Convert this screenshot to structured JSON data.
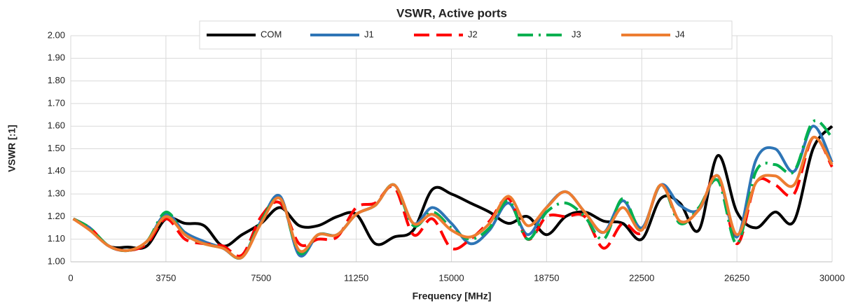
{
  "chart_data": {
    "type": "line",
    "title": "VSWR, Active ports",
    "xlabel": "Frequency [MHz]",
    "ylabel": "VSWR [:1]",
    "x": [
      100,
      750,
      1500,
      2250,
      3000,
      3750,
      4500,
      5250,
      6000,
      6750,
      7500,
      8250,
      9000,
      9750,
      10500,
      11250,
      12000,
      12750,
      13500,
      14250,
      15000,
      15750,
      16500,
      17250,
      18000,
      18750,
      19500,
      20250,
      21000,
      21750,
      22500,
      23250,
      24000,
      24750,
      25500,
      26250,
      27000,
      27750,
      28500,
      29250,
      30000
    ],
    "series": [
      {
        "name": "COM",
        "color": "#000000",
        "dash": "solid",
        "values": [
          1.19,
          1.15,
          1.07,
          1.065,
          1.07,
          1.19,
          1.17,
          1.16,
          1.07,
          1.12,
          1.17,
          1.24,
          1.16,
          1.16,
          1.2,
          1.21,
          1.08,
          1.11,
          1.14,
          1.32,
          1.3,
          1.26,
          1.22,
          1.17,
          1.2,
          1.12,
          1.2,
          1.22,
          1.18,
          1.17,
          1.1,
          1.28,
          1.26,
          1.14,
          1.47,
          1.22,
          1.15,
          1.22,
          1.18,
          1.5,
          1.6
        ]
      },
      {
        "name": "J1",
        "color": "#2e75b6",
        "dash": "solid",
        "values": [
          1.19,
          1.15,
          1.07,
          1.05,
          1.09,
          1.21,
          1.13,
          1.09,
          1.06,
          1.02,
          1.18,
          1.29,
          1.03,
          1.12,
          1.12,
          1.21,
          1.25,
          1.34,
          1.17,
          1.24,
          1.17,
          1.08,
          1.14,
          1.26,
          1.12,
          1.24,
          1.31,
          1.22,
          1.13,
          1.27,
          1.15,
          1.34,
          1.25,
          1.23,
          1.38,
          1.11,
          1.45,
          1.5,
          1.4,
          1.6,
          1.44
        ]
      },
      {
        "name": "J2",
        "color": "#ff0000",
        "dash": "dashed",
        "values": [
          1.19,
          1.15,
          1.07,
          1.05,
          1.08,
          1.19,
          1.1,
          1.08,
          1.07,
          1.03,
          1.2,
          1.26,
          1.08,
          1.1,
          1.11,
          1.24,
          1.26,
          1.33,
          1.12,
          1.19,
          1.06,
          1.1,
          1.18,
          1.28,
          1.1,
          1.2,
          1.2,
          1.2,
          1.06,
          1.17,
          1.13,
          1.34,
          1.18,
          1.23,
          1.38,
          1.08,
          1.35,
          1.34,
          1.3,
          1.55,
          1.42
        ]
      },
      {
        "name": "J3",
        "color": "#00b050",
        "dash": "dashdot",
        "values": [
          1.19,
          1.15,
          1.07,
          1.05,
          1.09,
          1.22,
          1.12,
          1.08,
          1.06,
          1.02,
          1.18,
          1.28,
          1.04,
          1.12,
          1.12,
          1.21,
          1.25,
          1.34,
          1.16,
          1.22,
          1.15,
          1.1,
          1.15,
          1.27,
          1.1,
          1.22,
          1.26,
          1.2,
          1.1,
          1.28,
          1.14,
          1.34,
          1.17,
          1.24,
          1.36,
          1.08,
          1.4,
          1.43,
          1.4,
          1.62,
          1.55
        ]
      },
      {
        "name": "J4",
        "color": "#ed7d31",
        "dash": "solid",
        "values": [
          1.19,
          1.14,
          1.07,
          1.05,
          1.09,
          1.2,
          1.12,
          1.08,
          1.06,
          1.02,
          1.17,
          1.28,
          1.05,
          1.12,
          1.12,
          1.21,
          1.25,
          1.34,
          1.17,
          1.21,
          1.14,
          1.11,
          1.17,
          1.29,
          1.16,
          1.24,
          1.31,
          1.22,
          1.13,
          1.24,
          1.14,
          1.34,
          1.18,
          1.23,
          1.38,
          1.12,
          1.35,
          1.38,
          1.34,
          1.55,
          1.43
        ]
      }
    ],
    "xlim": [
      0,
      30000
    ],
    "xticks": [
      0,
      3750,
      7500,
      11250,
      15000,
      18750,
      22500,
      26250,
      30000
    ],
    "ylim": [
      1,
      2
    ],
    "yticks": [
      {
        "value": 1,
        "label": "1.00"
      },
      {
        "value": 1.1,
        "label": "1.10"
      },
      {
        "value": 1.2,
        "label": "1.20"
      },
      {
        "value": 1.3,
        "label": "1.30"
      },
      {
        "value": 1.4,
        "label": "1.40"
      },
      {
        "value": 1.5,
        "label": "1.50"
      },
      {
        "value": 1.6,
        "label": "1.60"
      },
      {
        "value": 1.7,
        "label": "1.70"
      },
      {
        "value": 1.8,
        "label": "1.80"
      },
      {
        "value": 1.9,
        "label": "1.90"
      },
      {
        "value": 2,
        "label": "2.00"
      }
    ],
    "grid": true,
    "legend": "top"
  }
}
